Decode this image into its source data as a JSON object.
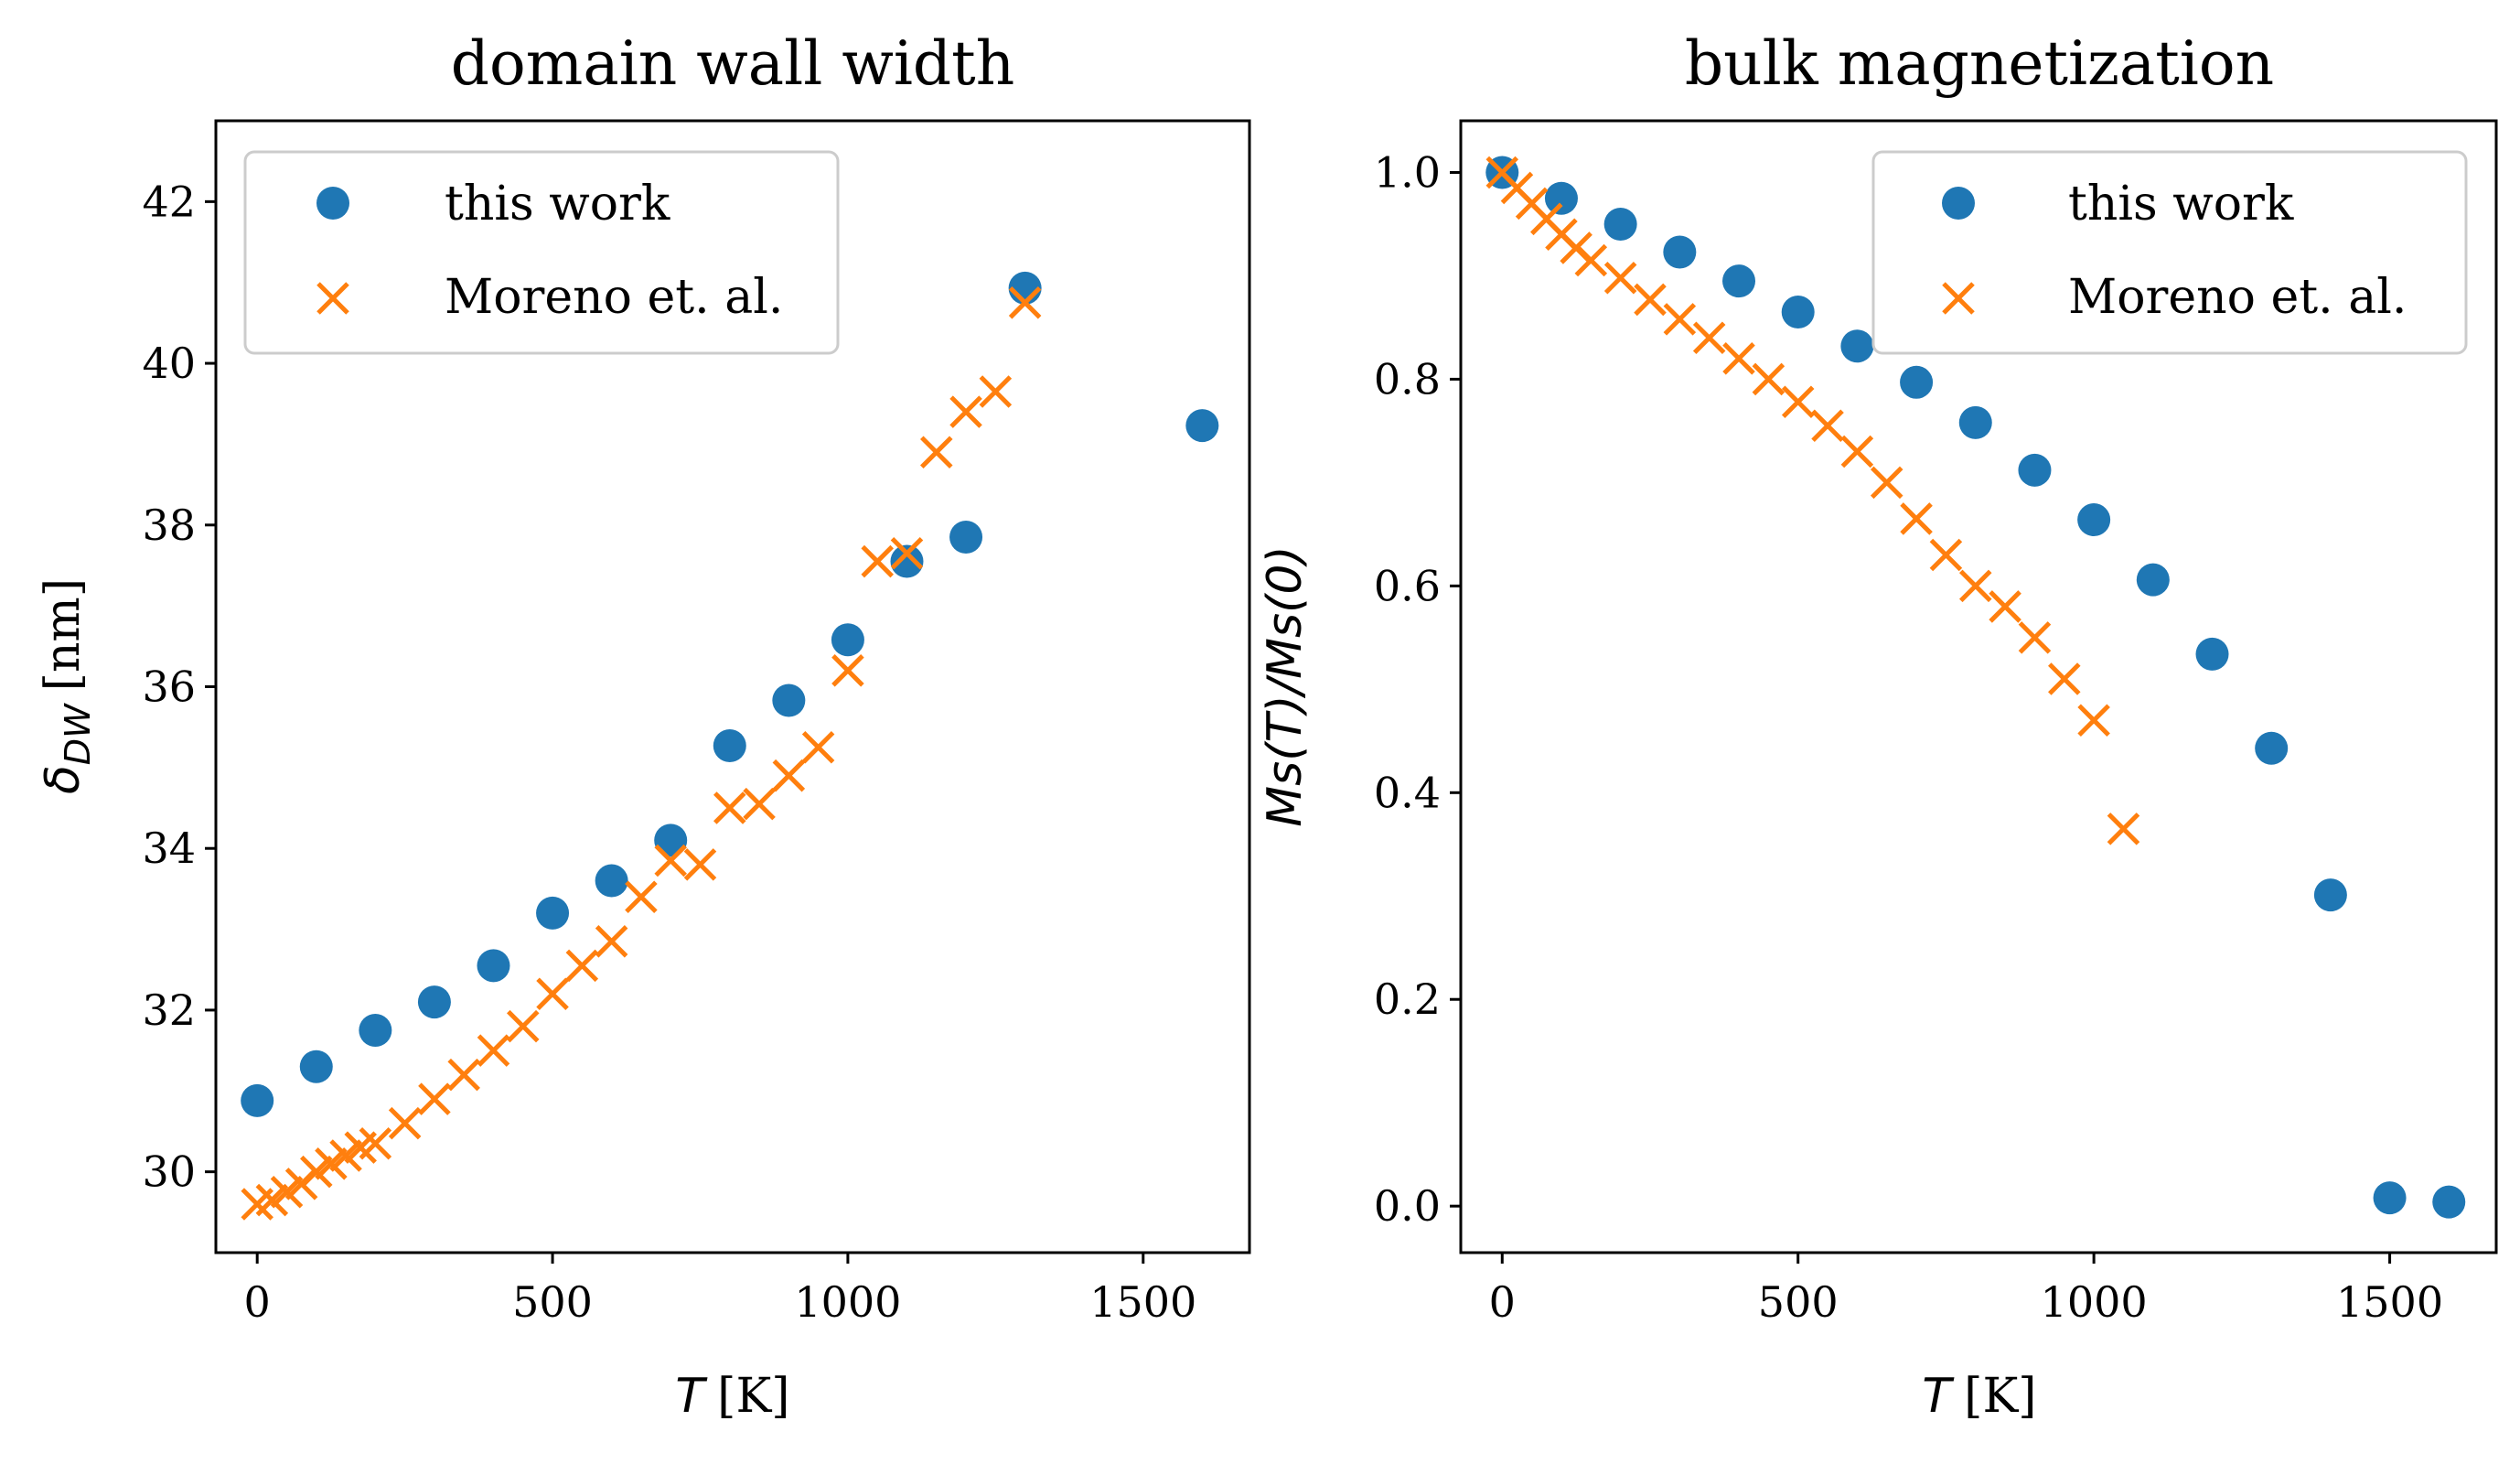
{
  "colors": {
    "series1": "#1f77b4",
    "series2": "#ff7f0e"
  },
  "chart_data": [
    {
      "type": "scatter",
      "title": "domain wall width",
      "xlabel_var": "T",
      "xlabel_unit": "[K]",
      "ylabel": "δDW [nm]",
      "ylabel_symbol": "δ",
      "ylabel_sub": "DW",
      "ylabel_unit": "[nm]",
      "xlim": [
        -70,
        1680
      ],
      "ylim": [
        29.0,
        43.0
      ],
      "xticks": [
        0,
        500,
        1000,
        1500
      ],
      "yticks": [
        30,
        32,
        34,
        36,
        38,
        40,
        42
      ],
      "legend_position": "top-left",
      "series": [
        {
          "name": "this work",
          "marker": "circle",
          "x": [
            0,
            100,
            200,
            300,
            400,
            500,
            600,
            700,
            800,
            900,
            1000,
            1100,
            1200,
            1300,
            1600
          ],
          "y": [
            30.88,
            31.3,
            31.75,
            32.1,
            32.55,
            33.2,
            33.6,
            34.1,
            35.27,
            35.83,
            36.58,
            37.55,
            37.85,
            40.93,
            39.23
          ]
        },
        {
          "name": "Moreno et. al.",
          "marker": "x",
          "x": [
            0,
            25,
            50,
            75,
            100,
            125,
            150,
            175,
            200,
            250,
            300,
            350,
            400,
            450,
            500,
            550,
            600,
            650,
            700,
            750,
            800,
            850,
            900,
            950,
            1000,
            1050,
            1100,
            1150,
            1200,
            1250,
            1300
          ],
          "y": [
            29.6,
            29.65,
            29.75,
            29.85,
            30.0,
            30.1,
            30.2,
            30.3,
            30.35,
            30.6,
            30.9,
            31.2,
            31.5,
            31.8,
            32.2,
            32.55,
            32.85,
            33.4,
            33.85,
            33.8,
            34.5,
            34.55,
            34.9,
            35.25,
            36.2,
            37.55,
            37.65,
            38.9,
            39.4,
            39.65,
            40.75
          ]
        }
      ]
    },
    {
      "type": "scatter",
      "title": "bulk magnetization",
      "xlabel_var": "T",
      "xlabel_unit": "[K]",
      "ylabel": "Ms(T)/Ms(0)",
      "xlim": [
        -70,
        1680
      ],
      "ylim": [
        -0.045,
        1.05
      ],
      "xticks": [
        0,
        500,
        1000,
        1500
      ],
      "yticks": [
        0.0,
        0.2,
        0.4,
        0.6,
        0.8,
        1.0
      ],
      "ytick_labels": [
        "0.0",
        "0.2",
        "0.4",
        "0.6",
        "0.8",
        "1.0"
      ],
      "legend_position": "top-right",
      "series": [
        {
          "name": "this work",
          "marker": "circle",
          "x": [
            0,
            100,
            200,
            300,
            400,
            500,
            600,
            700,
            800,
            900,
            1000,
            1100,
            1200,
            1300,
            1400,
            1500,
            1600
          ],
          "y": [
            1.0,
            0.975,
            0.95,
            0.923,
            0.895,
            0.865,
            0.832,
            0.797,
            0.758,
            0.712,
            0.664,
            0.606,
            0.534,
            0.443,
            0.301,
            0.008,
            0.004
          ]
        },
        {
          "name": "Moreno et. al.",
          "marker": "x",
          "x": [
            0,
            25,
            50,
            75,
            100,
            125,
            150,
            200,
            250,
            300,
            350,
            400,
            450,
            500,
            550,
            600,
            650,
            700,
            750,
            800,
            850,
            900,
            950,
            1000,
            1050
          ],
          "y": [
            1.0,
            0.985,
            0.97,
            0.955,
            0.94,
            0.927,
            0.915,
            0.898,
            0.877,
            0.858,
            0.84,
            0.82,
            0.8,
            0.778,
            0.755,
            0.73,
            0.7,
            0.665,
            0.63,
            0.6,
            0.58,
            0.55,
            0.51,
            0.47,
            0.365
          ]
        }
      ]
    }
  ]
}
